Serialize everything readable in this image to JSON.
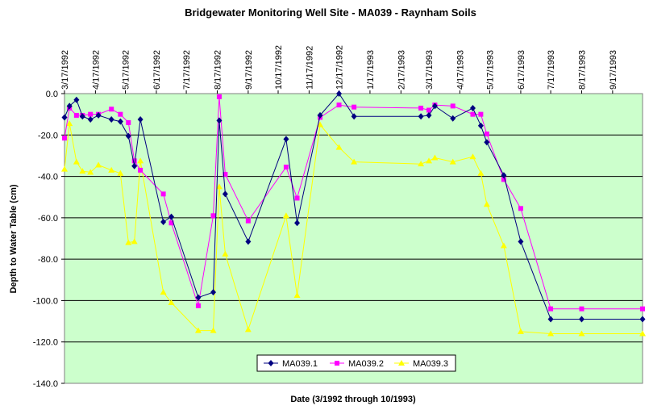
{
  "chart_data": {
    "type": "line",
    "title": "Bridgewater Monitoring Well Site - MA039 - Raynham Soils",
    "xlabel": "Date (3/1992 through 10/1993)",
    "ylabel": "Depth to Water Table (cm)",
    "x_range": [
      "1992-03-17",
      "1993-10-17"
    ],
    "ylim": [
      -140,
      0
    ],
    "y_ticks": [
      "0.0",
      "-20.0",
      "-40.0",
      "-60.0",
      "-80.0",
      "-100.0",
      "-120.0",
      "-140.0"
    ],
    "y_tick_values": [
      0,
      -20,
      -40,
      -60,
      -80,
      -100,
      -120,
      -140
    ],
    "x_ticks": [
      "3/17/1992",
      "4/17/1992",
      "5/17/1992",
      "6/17/1992",
      "7/17/1992",
      "8/17/1992",
      "9/17/1992",
      "10/17/1992",
      "11/17/1992",
      "12/17/1992",
      "1/17/1993",
      "2/17/1993",
      "3/17/1993",
      "4/17/1993",
      "5/17/1993",
      "6/17/1993",
      "7/17/1993",
      "8/17/1993",
      "9/17/1993"
    ],
    "x_tick_dates": [
      "1992-03-17",
      "1992-04-17",
      "1992-05-17",
      "1992-06-17",
      "1992-07-17",
      "1992-08-17",
      "1992-09-17",
      "1992-10-17",
      "1992-11-17",
      "1992-12-17",
      "1993-01-17",
      "1993-02-17",
      "1993-03-17",
      "1993-04-17",
      "1993-05-17",
      "1993-06-17",
      "1993-07-17",
      "1993-08-17",
      "1993-09-17"
    ],
    "gridlines": "horizontal",
    "plot_background": "#ccffcc",
    "legend_position": "bottom-center",
    "series": [
      {
        "name": "MA039.1",
        "color": "#000080",
        "marker": "diamond",
        "points": [
          [
            "1992-03-17",
            -11.5
          ],
          [
            "1992-03-22",
            -6
          ],
          [
            "1992-03-29",
            -3
          ],
          [
            "1992-04-04",
            -11
          ],
          [
            "1992-04-12",
            -12.5
          ],
          [
            "1992-04-20",
            -10.5
          ],
          [
            "1992-05-03",
            -12.5
          ],
          [
            "1992-05-12",
            -13.5
          ],
          [
            "1992-05-20",
            -20.5
          ],
          [
            "1992-05-26",
            -35
          ],
          [
            "1992-06-01",
            -12.5
          ],
          [
            "1992-06-24",
            -62
          ],
          [
            "1992-07-02",
            -59.5
          ],
          [
            "1992-07-29",
            -98.5
          ],
          [
            "1992-08-13",
            -96
          ],
          [
            "1992-08-19",
            -13
          ],
          [
            "1992-08-25",
            -48.5
          ],
          [
            "1992-09-17",
            -71.5
          ],
          [
            "1992-10-25",
            -22
          ],
          [
            "1992-11-05",
            -62.5
          ],
          [
            "1992-11-28",
            -10.5
          ],
          [
            "1992-12-17",
            0
          ],
          [
            "1993-01-01",
            -11
          ],
          [
            "1993-03-09",
            -11
          ],
          [
            "1993-03-17",
            -10.5
          ],
          [
            "1993-03-23",
            -6
          ],
          [
            "1993-04-10",
            -12
          ],
          [
            "1993-04-30",
            -7
          ],
          [
            "1993-05-08",
            -15.5
          ],
          [
            "1993-05-14",
            -23.5
          ],
          [
            "1993-05-31",
            -39.5
          ],
          [
            "1993-06-17",
            -71.5
          ],
          [
            "1993-07-17",
            -109
          ],
          [
            "1993-08-17",
            -109
          ],
          [
            "1993-10-17",
            -109
          ]
        ]
      },
      {
        "name": "MA039.2",
        "color": "#ff00ff",
        "marker": "square",
        "points": [
          [
            "1992-03-17",
            -21.5
          ],
          [
            "1992-03-22",
            -7
          ],
          [
            "1992-03-29",
            -10.5
          ],
          [
            "1992-04-04",
            -10.5
          ],
          [
            "1992-04-12",
            -10
          ],
          [
            "1992-04-20",
            -10
          ],
          [
            "1992-05-03",
            -7.5
          ],
          [
            "1992-05-12",
            -10
          ],
          [
            "1992-05-20",
            -14
          ],
          [
            "1992-05-26",
            -32.5
          ],
          [
            "1992-06-01",
            -37
          ],
          [
            "1992-06-24",
            -48.5
          ],
          [
            "1992-07-02",
            -62.5
          ],
          [
            "1992-07-29",
            -102.5
          ],
          [
            "1992-08-13",
            -59
          ],
          [
            "1992-08-19",
            -1.5
          ],
          [
            "1992-08-25",
            -39
          ],
          [
            "1992-09-17",
            -61.5
          ],
          [
            "1992-10-25",
            -35.5
          ],
          [
            "1992-11-05",
            -50.5
          ],
          [
            "1992-11-28",
            -11.5
          ],
          [
            "1992-12-17",
            -5.5
          ],
          [
            "1993-01-01",
            -6.5
          ],
          [
            "1993-03-09",
            -7
          ],
          [
            "1993-03-17",
            -8
          ],
          [
            "1993-03-23",
            -5.5
          ],
          [
            "1993-04-10",
            -6
          ],
          [
            "1993-04-30",
            -10
          ],
          [
            "1993-05-08",
            -10
          ],
          [
            "1993-05-14",
            -19.5
          ],
          [
            "1993-05-31",
            -41.5
          ],
          [
            "1993-06-17",
            -55.5
          ],
          [
            "1993-07-17",
            -104
          ],
          [
            "1993-08-17",
            -104
          ],
          [
            "1993-10-17",
            -104
          ]
        ]
      },
      {
        "name": "MA039.3",
        "color": "#ffff00",
        "marker": "triangle",
        "points": [
          [
            "1992-03-17",
            -36.5
          ],
          [
            "1992-03-22",
            -14.5
          ],
          [
            "1992-03-29",
            -33
          ],
          [
            "1992-04-04",
            -37.5
          ],
          [
            "1992-04-12",
            -38
          ],
          [
            "1992-04-20",
            -34.5
          ],
          [
            "1992-05-03",
            -37
          ],
          [
            "1992-05-12",
            -38.5
          ],
          [
            "1992-05-20",
            -72
          ],
          [
            "1992-05-26",
            -71.5
          ],
          [
            "1992-06-01",
            -32.5
          ],
          [
            "1992-06-24",
            -96
          ],
          [
            "1992-07-02",
            -101
          ],
          [
            "1992-07-29",
            -114.5
          ],
          [
            "1992-08-13",
            -114.5
          ],
          [
            "1992-08-19",
            -45
          ],
          [
            "1992-08-25",
            -77.5
          ],
          [
            "1992-09-17",
            -114
          ],
          [
            "1992-10-25",
            -59
          ],
          [
            "1992-11-05",
            -97.5
          ],
          [
            "1992-11-28",
            -15
          ],
          [
            "1992-12-17",
            -26
          ],
          [
            "1993-01-01",
            -33
          ],
          [
            "1993-03-09",
            -34
          ],
          [
            "1993-03-17",
            -32.5
          ],
          [
            "1993-03-23",
            -31
          ],
          [
            "1993-04-10",
            -33
          ],
          [
            "1993-04-30",
            -30.5
          ],
          [
            "1993-05-08",
            -38.5
          ],
          [
            "1993-05-14",
            -53.5
          ],
          [
            "1993-05-31",
            -73.5
          ],
          [
            "1993-06-17",
            -115
          ],
          [
            "1993-07-17",
            -116
          ],
          [
            "1993-08-17",
            -116
          ],
          [
            "1993-10-17",
            -116
          ]
        ]
      }
    ]
  }
}
